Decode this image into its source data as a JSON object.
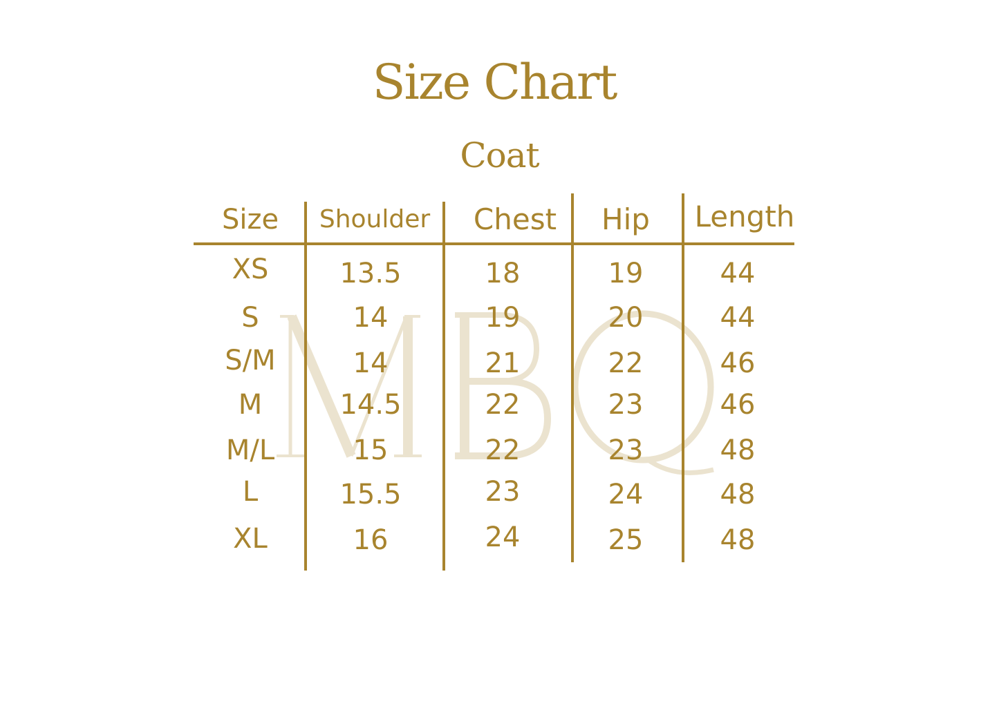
{
  "title": "Size Chart",
  "subtitle": "Coat",
  "watermark": "MBQ",
  "accent_color": "#a8842e",
  "table": {
    "headers": [
      "Size",
      "Shoulder",
      "Chest",
      "Hip",
      "Length"
    ],
    "rows": [
      [
        "XS",
        "13.5",
        "18",
        "19",
        "44"
      ],
      [
        "S",
        "14",
        "19",
        "20",
        "44"
      ],
      [
        "S/M",
        "14",
        "21",
        "22",
        "46"
      ],
      [
        "M",
        "14.5",
        "22",
        "23",
        "46"
      ],
      [
        "M/L",
        "15",
        "22",
        "23",
        "48"
      ],
      [
        "L",
        "15.5",
        "23",
        "24",
        "48"
      ],
      [
        "XL",
        "16",
        "24",
        "25",
        "48"
      ]
    ]
  }
}
